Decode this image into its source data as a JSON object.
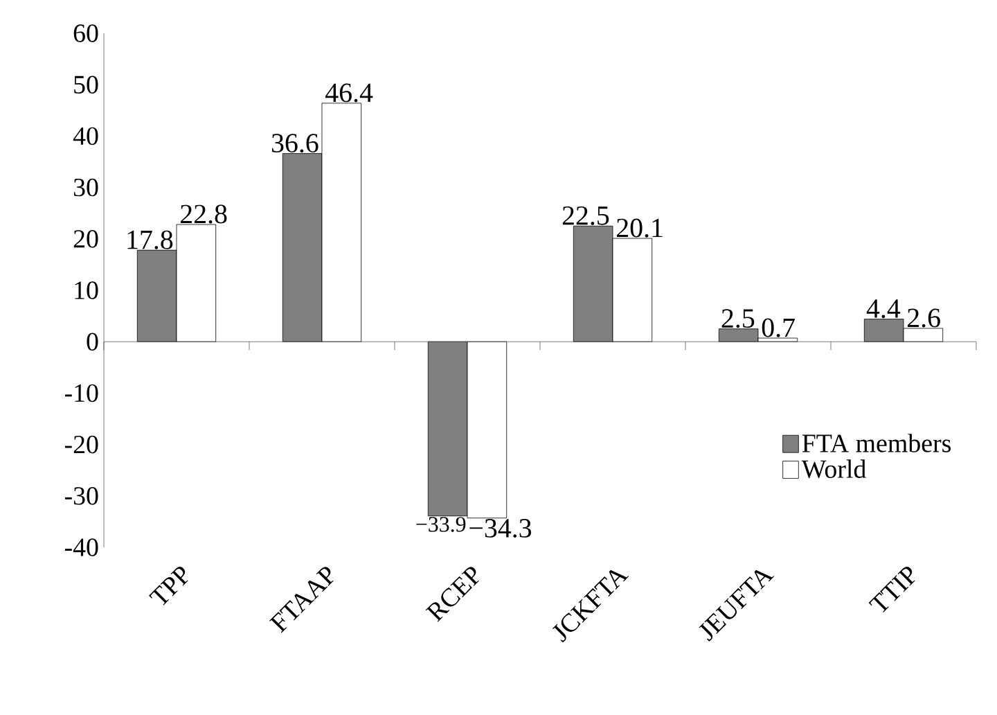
{
  "chart_data": {
    "type": "bar",
    "categories": [
      "TPP",
      "FTAAP",
      "RCEP",
      "JCKFTA",
      "JEUFTA",
      "TTIP"
    ],
    "series": [
      {
        "name": "FTA members",
        "color": "#808080",
        "values": [
          17.8,
          36.6,
          -33.9,
          22.5,
          2.5,
          4.4
        ],
        "value_labels": [
          "17.8",
          "36.6",
          "−33.9",
          "22.5",
          "2.5",
          "4.4"
        ]
      },
      {
        "name": "World",
        "color": "#ffffff",
        "values": [
          22.8,
          46.4,
          -34.3,
          20.1,
          0.7,
          2.6
        ],
        "value_labels": [
          "22.8",
          "46.4",
          "−34.3",
          "20.1",
          "0.7",
          "2.6"
        ]
      }
    ],
    "ylim": [
      -40,
      60
    ],
    "yticks": [
      -40,
      -30,
      -20,
      -10,
      0,
      10,
      20,
      30,
      40,
      50,
      60
    ],
    "legend": "bottom right"
  }
}
